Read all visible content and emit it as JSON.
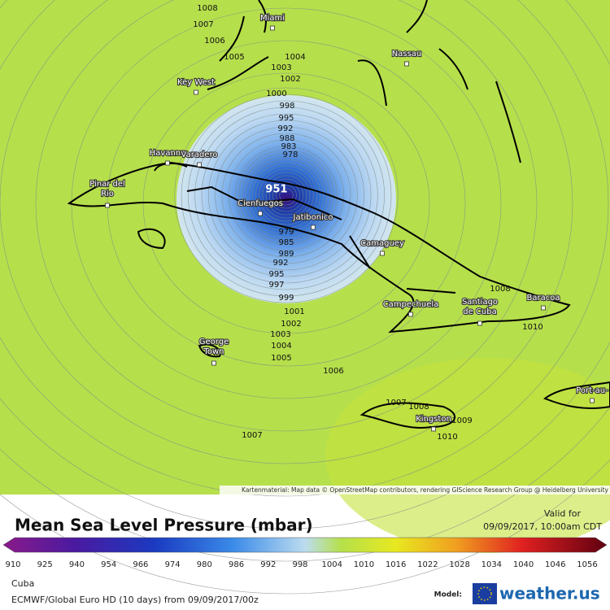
{
  "map": {
    "isobar_labels": [
      "1008",
      "1007",
      "1006",
      "1005",
      "1004",
      "1003",
      "1002",
      "1000",
      "998",
      "995",
      "992",
      "988",
      "983",
      "978",
      "951",
      "979",
      "985",
      "989",
      "992",
      "995",
      "997",
      "999",
      "1001",
      "1002",
      "1003",
      "1004",
      "1005",
      "1006",
      "1007",
      "1008",
      "1010",
      "1007",
      "1008",
      "1009",
      "1010"
    ],
    "cities": [
      {
        "lines": [
          "Miami"
        ]
      },
      {
        "lines": [
          "Nassau"
        ]
      },
      {
        "lines": [
          "Key West"
        ]
      },
      {
        "lines": [
          "Havanna"
        ]
      },
      {
        "lines": [
          "Varadero"
        ]
      },
      {
        "lines": [
          "Pinar del",
          "Rio"
        ]
      },
      {
        "lines": [
          "Cienfuegos"
        ]
      },
      {
        "lines": [
          "Jatibonico"
        ]
      },
      {
        "lines": [
          "Camaguey"
        ]
      },
      {
        "lines": [
          "Santiago",
          "de Cuba"
        ]
      },
      {
        "lines": [
          "Baracoa"
        ]
      },
      {
        "lines": [
          "Campechuela"
        ]
      },
      {
        "lines": [
          "George",
          "Town"
        ]
      },
      {
        "lines": [
          "Kingston"
        ]
      },
      {
        "lines": [
          "Port-au-"
        ]
      }
    ],
    "attribution": "Kartenmaterial: Map data © OpenStreetMap contributors, rendering GIScience Research Group @ Heidelberg University"
  },
  "legend": {
    "title": "Mean Sea Level Pressure (mbar)",
    "valid_label": "Valid for",
    "valid_time": "09/09/2017, 10:00am CDT",
    "ticks": [
      "910",
      "925",
      "940",
      "954",
      "966",
      "974",
      "980",
      "986",
      "992",
      "998",
      "1004",
      "1010",
      "1016",
      "1022",
      "1028",
      "1034",
      "1040",
      "1046",
      "1056"
    ]
  },
  "footer": {
    "region": "Cuba",
    "model_run": "ECMWF/Global Euro HD (10 days) from 09/09/2017/00z",
    "model_label": "Model:",
    "brand": "weather.us"
  }
}
